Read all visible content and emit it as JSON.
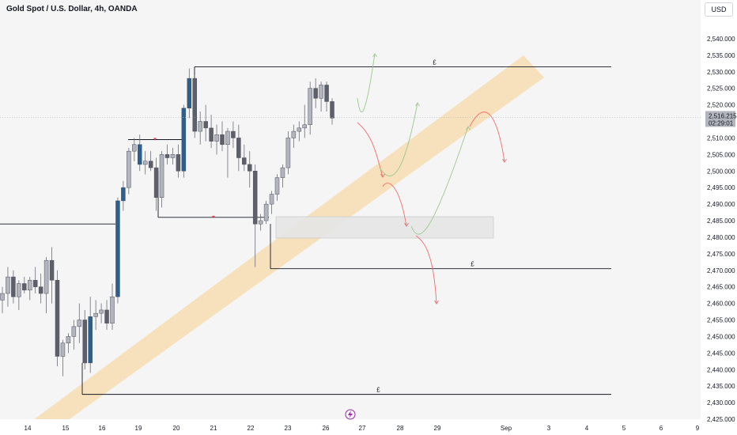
{
  "header": {
    "title": "Gold Spot / U.S. Dollar, 4h, OANDA",
    "currency_button": "USD"
  },
  "price_label": {
    "price": "2,516.215",
    "countdown": "02:29:01",
    "color": "#b2b5be"
  },
  "colors": {
    "background": "#ffffff",
    "plot_background": "#f5f5f5",
    "candle_up": "#b2b5be",
    "candle_down": "#5d606b",
    "candle_highlight": "#2a5f8e",
    "trend_channel": "#f7d9a8",
    "path_up": "#9cc98d",
    "path_down": "#ee6d6d",
    "level_line": "#131722",
    "marker": "#f23645",
    "lightning_icon": "#9c27b0"
  },
  "chart_data": {
    "type": "candlestick",
    "title": "Gold Spot / U.S. Dollar, 4h, OANDA",
    "ylim": [
      2425,
      2545
    ],
    "y_ticks": [
      "2,425.000",
      "2,430.000",
      "2,435.000",
      "2,440.000",
      "2,445.000",
      "2,450.000",
      "2,455.000",
      "2,460.000",
      "2,465.000",
      "2,470.000",
      "2,475.000",
      "2,480.000",
      "2,485.000",
      "2,490.000",
      "2,495.000",
      "2,500.000",
      "2,505.000",
      "2,510.000",
      "2,515.000",
      "2,520.000",
      "2,525.000",
      "2,530.000",
      "2,535.000",
      "2,540.000"
    ],
    "x_ticks": [
      "14",
      "15",
      "16",
      "19",
      "20",
      "21",
      "22",
      "23",
      "26",
      "27",
      "28",
      "29",
      "Sep",
      "3",
      "4",
      "5",
      "6",
      "9"
    ],
    "grid": false,
    "candles": [
      {
        "t": 0.0,
        "o": 2461,
        "h": 2465,
        "l": 2457,
        "c": 2463
      },
      {
        "t": 1.0,
        "o": 2463,
        "h": 2471,
        "l": 2459,
        "c": 2468
      },
      {
        "t": 2.0,
        "o": 2468,
        "h": 2470,
        "l": 2460,
        "c": 2462
      },
      {
        "t": 3.0,
        "o": 2462,
        "h": 2467,
        "l": 2458,
        "c": 2466
      },
      {
        "t": 4.0,
        "o": 2466,
        "h": 2468,
        "l": 2463,
        "c": 2464
      },
      {
        "t": 5.0,
        "o": 2464,
        "h": 2468,
        "l": 2461,
        "c": 2467
      },
      {
        "t": 6.0,
        "o": 2467,
        "h": 2471,
        "l": 2463,
        "c": 2465
      },
      {
        "t": 7.0,
        "o": 2465,
        "h": 2469,
        "l": 2460,
        "c": 2463
      },
      {
        "t": 8.0,
        "o": 2463,
        "h": 2474,
        "l": 2457,
        "c": 2473
      },
      {
        "t": 9.0,
        "o": 2473,
        "h": 2477,
        "l": 2460,
        "c": 2467
      },
      {
        "t": 10.0,
        "o": 2467,
        "h": 2470,
        "l": 2441,
        "c": 2444
      },
      {
        "t": 11.0,
        "o": 2444,
        "h": 2449,
        "l": 2438,
        "c": 2448
      },
      {
        "t": 12.0,
        "o": 2448,
        "h": 2451,
        "l": 2445,
        "c": 2450
      },
      {
        "t": 13.0,
        "o": 2450,
        "h": 2455,
        "l": 2446,
        "c": 2453
      },
      {
        "t": 14.0,
        "o": 2453,
        "h": 2460,
        "l": 2448,
        "c": 2455
      },
      {
        "t": 15.0,
        "o": 2455,
        "h": 2458,
        "l": 2440,
        "c": 2442
      },
      {
        "t": 16.0,
        "o": 2442,
        "h": 2462,
        "l": 2439,
        "c": 2456
      },
      {
        "t": 17.0,
        "o": 2456,
        "h": 2461,
        "l": 2452,
        "c": 2457
      },
      {
        "t": 18.0,
        "o": 2457,
        "h": 2460,
        "l": 2454,
        "c": 2458
      },
      {
        "t": 19.0,
        "o": 2458,
        "h": 2461,
        "l": 2452,
        "c": 2454
      },
      {
        "t": 20.0,
        "o": 2454,
        "h": 2466,
        "l": 2452,
        "c": 2462
      },
      {
        "t": 21.0,
        "o": 2462,
        "h": 2492,
        "l": 2460,
        "c": 2491
      },
      {
        "t": 22.0,
        "o": 2491,
        "h": 2497,
        "l": 2488,
        "c": 2495
      },
      {
        "t": 23.0,
        "o": 2495,
        "h": 2507,
        "l": 2493,
        "c": 2506
      },
      {
        "t": 24.0,
        "o": 2506,
        "h": 2510,
        "l": 2503,
        "c": 2508
      },
      {
        "t": 25.0,
        "o": 2508,
        "h": 2511,
        "l": 2500,
        "c": 2502
      },
      {
        "t": 26.0,
        "o": 2502,
        "h": 2506,
        "l": 2499,
        "c": 2503
      },
      {
        "t": 27.0,
        "o": 2503,
        "h": 2506,
        "l": 2500,
        "c": 2501
      },
      {
        "t": 28.0,
        "o": 2501,
        "h": 2504,
        "l": 2488,
        "c": 2492
      },
      {
        "t": 29.0,
        "o": 2492,
        "h": 2506,
        "l": 2489,
        "c": 2505
      },
      {
        "t": 30.0,
        "o": 2505,
        "h": 2508,
        "l": 2502,
        "c": 2504
      },
      {
        "t": 31.0,
        "o": 2504,
        "h": 2507,
        "l": 2502,
        "c": 2505
      },
      {
        "t": 32.0,
        "o": 2505,
        "h": 2508,
        "l": 2498,
        "c": 2500
      },
      {
        "t": 33.0,
        "o": 2500,
        "h": 2520,
        "l": 2498,
        "c": 2519
      },
      {
        "t": 34.0,
        "o": 2519,
        "h": 2531,
        "l": 2516,
        "c": 2528
      },
      {
        "t": 35.0,
        "o": 2528,
        "h": 2529,
        "l": 2510,
        "c": 2512
      },
      {
        "t": 36.0,
        "o": 2512,
        "h": 2518,
        "l": 2508,
        "c": 2515
      },
      {
        "t": 37.0,
        "o": 2515,
        "h": 2520,
        "l": 2509,
        "c": 2513
      },
      {
        "t": 38.0,
        "o": 2513,
        "h": 2517,
        "l": 2507,
        "c": 2509
      },
      {
        "t": 39.0,
        "o": 2509,
        "h": 2514,
        "l": 2505,
        "c": 2511
      },
      {
        "t": 40.0,
        "o": 2511,
        "h": 2515,
        "l": 2506,
        "c": 2508
      },
      {
        "t": 41.0,
        "o": 2508,
        "h": 2513,
        "l": 2498,
        "c": 2512
      },
      {
        "t": 42.0,
        "o": 2512,
        "h": 2515,
        "l": 2507,
        "c": 2510
      },
      {
        "t": 43.0,
        "o": 2510,
        "h": 2514,
        "l": 2500,
        "c": 2504
      },
      {
        "t": 44.0,
        "o": 2504,
        "h": 2508,
        "l": 2500,
        "c": 2502
      },
      {
        "t": 45.0,
        "o": 2502,
        "h": 2506,
        "l": 2495,
        "c": 2500
      },
      {
        "t": 46.0,
        "o": 2500,
        "h": 2502,
        "l": 2471,
        "c": 2484
      },
      {
        "t": 47.0,
        "o": 2484,
        "h": 2487,
        "l": 2482,
        "c": 2485
      },
      {
        "t": 48.0,
        "o": 2485,
        "h": 2491,
        "l": 2484,
        "c": 2490
      },
      {
        "t": 49.0,
        "o": 2490,
        "h": 2494,
        "l": 2487,
        "c": 2493
      },
      {
        "t": 50.0,
        "o": 2493,
        "h": 2499,
        "l": 2491,
        "c": 2498
      },
      {
        "t": 51.0,
        "o": 2498,
        "h": 2502,
        "l": 2495,
        "c": 2501
      },
      {
        "t": 52.0,
        "o": 2501,
        "h": 2512,
        "l": 2499,
        "c": 2510
      },
      {
        "t": 53.0,
        "o": 2510,
        "h": 2514,
        "l": 2507,
        "c": 2512
      },
      {
        "t": 54.0,
        "o": 2512,
        "h": 2515,
        "l": 2509,
        "c": 2513
      },
      {
        "t": 55.0,
        "o": 2513,
        "h": 2520,
        "l": 2510,
        "c": 2514
      },
      {
        "t": 56.0,
        "o": 2514,
        "h": 2527,
        "l": 2511,
        "c": 2525
      },
      {
        "t": 57.0,
        "o": 2525,
        "h": 2528,
        "l": 2519,
        "c": 2522
      },
      {
        "t": 58.0,
        "o": 2522,
        "h": 2527,
        "l": 2518,
        "c": 2526
      },
      {
        "t": 59.0,
        "o": 2526,
        "h": 2527,
        "l": 2518,
        "c": 2521
      },
      {
        "t": 60.0,
        "o": 2521,
        "h": 2522,
        "l": 2514,
        "c": 2516
      }
    ],
    "highlighted_candles": [
      16,
      21,
      22,
      25,
      33,
      34
    ],
    "horizontal_levels": [
      {
        "price": 2531.5,
        "label": "£"
      },
      {
        "price": 2470.5,
        "label": "£"
      },
      {
        "price": 2432.5,
        "label": "£"
      },
      {
        "price": 2484.0,
        "label": ""
      },
      {
        "price": 2509.5,
        "label": ""
      },
      {
        "price": 2486.0,
        "label": ""
      }
    ]
  }
}
